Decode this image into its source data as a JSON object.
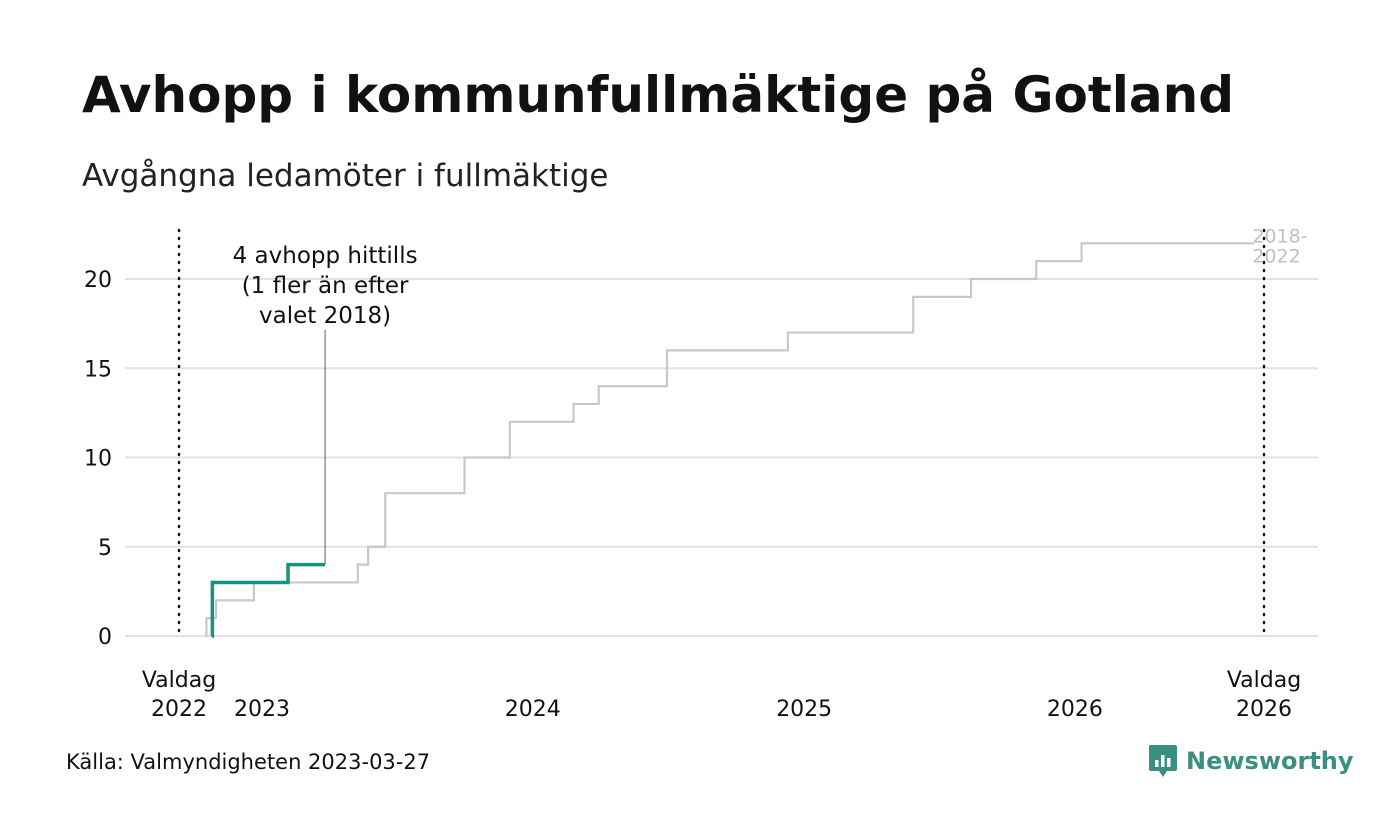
{
  "header": {
    "title": "Avhopp i kommunfullmäktige på Gotland",
    "subtitle": "Avgångna ledamöter i fullmäktige"
  },
  "footer": {
    "source": "Källa: Valmyndigheten 2023-03-27",
    "brand_name": "Newsworthy",
    "brand_icon": "newsworthy-logo-icon"
  },
  "chart_data": {
    "type": "line",
    "title": "Avhopp i kommunfullmäktige på Gotland",
    "subtitle": "Avgångna ledamöter i fullmäktige",
    "xlabel": "",
    "ylabel": "",
    "x_axis_type": "date",
    "xlim": [
      "2022-09-11",
      "2026-09-13"
    ],
    "ylim": [
      0,
      22
    ],
    "yticks": [
      0,
      5,
      10,
      15,
      20
    ],
    "xtick_labels": [
      {
        "date": "2022-09-11",
        "lines": [
          "Valdag",
          "2022"
        ]
      },
      {
        "date": "2023-01-01",
        "lines": [
          "2023"
        ]
      },
      {
        "date": "2024-01-01",
        "lines": [
          "2024"
        ]
      },
      {
        "date": "2025-01-01",
        "lines": [
          "2025"
        ]
      },
      {
        "date": "2026-01-01",
        "lines": [
          "2026"
        ]
      },
      {
        "date": "2026-09-13",
        "lines": [
          "Valdag",
          "2026"
        ]
      }
    ],
    "step": true,
    "grid": "horizontal",
    "colors": {
      "current": "#1a9080",
      "previous": "#c8c8c8",
      "gridline": "#e2e2e2",
      "election_marker": "#111111",
      "previous_label": "#c0c0c0"
    },
    "series": [
      {
        "name": "",
        "period": "current",
        "points": [
          {
            "x": "2022-10-25",
            "y": 0
          },
          {
            "x": "2022-10-26",
            "y": 3
          },
          {
            "x": "2023-02-05",
            "y": 4
          },
          {
            "x": "2023-03-27",
            "y": 4
          }
        ]
      },
      {
        "name": "2018-2022",
        "period": "previous",
        "points": [
          {
            "x": "2022-10-17",
            "y": 0
          },
          {
            "x": "2022-10-18",
            "y": 1
          },
          {
            "x": "2022-10-31",
            "y": 2
          },
          {
            "x": "2022-12-20",
            "y": 2
          },
          {
            "x": "2022-12-21",
            "y": 3
          },
          {
            "x": "2023-05-09",
            "y": 3
          },
          {
            "x": "2023-05-10",
            "y": 4
          },
          {
            "x": "2023-05-24",
            "y": 5
          },
          {
            "x": "2023-06-16",
            "y": 8
          },
          {
            "x": "2023-10-01",
            "y": 10
          },
          {
            "x": "2023-12-01",
            "y": 12
          },
          {
            "x": "2024-02-25",
            "y": 13
          },
          {
            "x": "2024-03-30",
            "y": 14
          },
          {
            "x": "2024-06-30",
            "y": 16
          },
          {
            "x": "2024-12-10",
            "y": 17
          },
          {
            "x": "2025-05-28",
            "y": 19
          },
          {
            "x": "2025-08-14",
            "y": 20
          },
          {
            "x": "2025-11-10",
            "y": 21
          },
          {
            "x": "2026-01-10",
            "y": 22
          },
          {
            "x": "2026-08-31",
            "y": 22
          }
        ]
      }
    ],
    "series_label": {
      "lines": [
        "2018-",
        "2022"
      ]
    },
    "election_markers": [
      "2022-09-11",
      "2026-09-13"
    ],
    "annotation": {
      "lines": [
        "4 avhopp hittills",
        "(1 fler än efter",
        "valet 2018)"
      ],
      "x": "2023-03-27",
      "y": 4
    }
  }
}
